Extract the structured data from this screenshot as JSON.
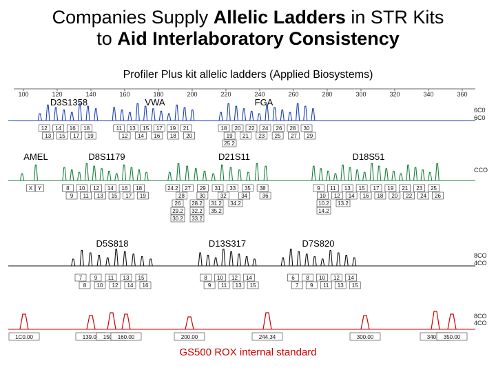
{
  "header": {
    "line1_pre": "Companies Supply ",
    "line1_bold": "Allelic Ladders",
    "line1_post": " in STR Kits",
    "line2_pre": "to ",
    "line2_bold": "Aid Interlaboratory Consistency"
  },
  "subtitle": "Profiler Plus kit allelic ladders (Applied Biosystems)",
  "footer": "GS500 ROX internal standard",
  "colors": {
    "blue": "#1a3fb0",
    "green": "#15803d",
    "black": "#111111",
    "red": "#d00000"
  },
  "chart_data": {
    "type": "line",
    "x_ticks": [
      "100",
      "120",
      "140",
      "160",
      "180",
      "200",
      "220",
      "240",
      "260",
      "280",
      "300",
      "320",
      "340",
      "360"
    ],
    "panels": [
      {
        "color": "blue",
        "right_axis": [
          "6C0",
          "6C0"
        ],
        "loci": [
          {
            "name": "D3S1358",
            "rows": [
              [
                "12",
                "14",
                "16",
                "18"
              ],
              [
                "13",
                "15",
                "17",
                "19"
              ]
            ]
          },
          {
            "name": "VWA",
            "rows": [
              [
                "11",
                "13",
                "15",
                "17",
                "19",
                "21"
              ],
              [
                "12",
                "14",
                "16",
                "18",
                "20"
              ]
            ]
          },
          {
            "name": "FGA",
            "rows": [
              [
                "18",
                "20",
                "22",
                "24",
                "26",
                "28",
                "30"
              ],
              [
                "19",
                "21",
                "23",
                "25",
                "27",
                "29"
              ],
              [
                "25.2"
              ]
            ]
          }
        ]
      },
      {
        "color": "green",
        "right_axis": [
          "CCO"
        ],
        "loci": [
          {
            "name": "AMEL",
            "rows": [
              [
                "X",
                "Y"
              ]
            ]
          },
          {
            "name": "D8S1179",
            "rows": [
              [
                "8",
                "10",
                "12",
                "14",
                "16",
                "18"
              ],
              [
                "9",
                "11",
                "13",
                "15",
                "17",
                "19"
              ]
            ]
          },
          {
            "name": "D21S11",
            "rows": [
              [
                "24.2",
                "27",
                "29",
                "31",
                "33",
                "35",
                "38"
              ],
              [
                "28",
                "30",
                "32",
                "34",
                "36"
              ],
              [
                "26",
                "28.2",
                "31.2",
                "34.2"
              ],
              [
                "29.2",
                "32.2",
                "35.2"
              ],
              [
                "30.2",
                "33.2"
              ]
            ]
          },
          {
            "name": "D18S51",
            "rows": [
              [
                "9",
                "11",
                "13",
                "15",
                "17",
                "19",
                "21",
                "23",
                "25"
              ],
              [
                "10",
                "12",
                "14",
                "16",
                "18",
                "20",
                "22",
                "24",
                "26"
              ],
              [
                "10.2",
                "13.2"
              ],
              [
                "14.2"
              ]
            ]
          }
        ]
      },
      {
        "color": "black",
        "right_axis": [
          "8CO",
          "4CO"
        ],
        "loci": [
          {
            "name": "D5S818",
            "rows": [
              [
                "7",
                "9",
                "11",
                "13",
                "15"
              ],
              [
                "8",
                "10",
                "12",
                "14",
                "16"
              ]
            ]
          },
          {
            "name": "D13S317",
            "rows": [
              [
                "8",
                "10",
                "12",
                "14"
              ],
              [
                "9",
                "11",
                "13",
                "15"
              ]
            ]
          },
          {
            "name": "D7S820",
            "rows": [
              [
                "6",
                "8",
                "10",
                "12",
                "14"
              ],
              [
                "7",
                "9",
                "11",
                "13",
                "15"
              ]
            ]
          }
        ]
      },
      {
        "color": "red",
        "right_axis": [
          "8CO",
          "4CO"
        ],
        "labels": [
          "1C0.00",
          "139.00",
          "150.00",
          "160.00",
          "200.00",
          "244.34",
          "300.00",
          "340.00",
          "350.00"
        ]
      }
    ]
  }
}
